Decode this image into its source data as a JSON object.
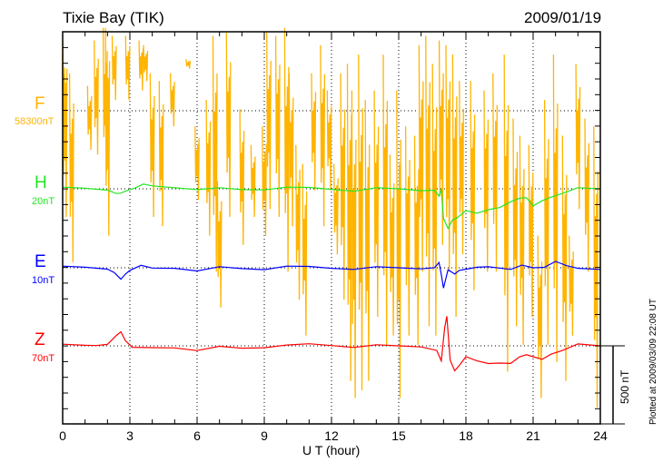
{
  "header": {
    "title": "Tixie Bay (TIK)",
    "date": "2009/01/19"
  },
  "footer": {
    "plotted": "Plotted at 2009/03/09 22:08 UT",
    "scale": "500 nT"
  },
  "chart_data": {
    "type": "line",
    "title": "Tixie Bay (TIK)",
    "xlabel": "U T (hour)",
    "xlim": [
      0,
      24
    ],
    "xticks": [
      "0",
      "3",
      "6",
      "9",
      "12",
      "15",
      "18",
      "21",
      "24"
    ],
    "scale_bar_nT": 500,
    "components": [
      {
        "name": "F",
        "baseline_label": "58300nT",
        "color": "#ffb400"
      },
      {
        "name": "H",
        "baseline_label": "20nT",
        "color": "#22e622"
      },
      {
        "name": "E",
        "baseline_label": "10nT",
        "color": "#0000ff"
      },
      {
        "name": "Z",
        "baseline_label": "70nT",
        "color": "#ff0000"
      }
    ],
    "H": [
      [
        0,
        0
      ],
      [
        1,
        0
      ],
      [
        2,
        -5
      ],
      [
        2.4,
        -20
      ],
      [
        2.6,
        -35
      ],
      [
        2.8,
        -15
      ],
      [
        3.2,
        10
      ],
      [
        3.6,
        20
      ],
      [
        4,
        15
      ],
      [
        5,
        10
      ],
      [
        6,
        5
      ],
      [
        7,
        0
      ],
      [
        8,
        -5
      ],
      [
        9,
        0
      ],
      [
        10,
        0
      ],
      [
        11,
        5
      ],
      [
        12,
        0
      ],
      [
        13,
        -5
      ],
      [
        14,
        0
      ],
      [
        15,
        0
      ],
      [
        16,
        -5
      ],
      [
        16.6,
        -20
      ],
      [
        16.8,
        -50
      ],
      [
        16.9,
        0
      ],
      [
        17.0,
        -180
      ],
      [
        17.2,
        -260
      ],
      [
        17.4,
        -200
      ],
      [
        17.6,
        -180
      ],
      [
        18,
        -150
      ],
      [
        18.5,
        -160
      ],
      [
        19,
        -130
      ],
      [
        19.5,
        -110
      ],
      [
        20,
        -90
      ],
      [
        20.4,
        -60
      ],
      [
        20.7,
        -50
      ],
      [
        21,
        -120
      ],
      [
        21.4,
        -80
      ],
      [
        21.8,
        -50
      ],
      [
        22.3,
        -20
      ],
      [
        23,
        0
      ],
      [
        24,
        0
      ]
    ],
    "E": [
      [
        0,
        0
      ],
      [
        1,
        0
      ],
      [
        2,
        -5
      ],
      [
        2.3,
        -20
      ],
      [
        2.6,
        -80
      ],
      [
        2.8,
        -40
      ],
      [
        3,
        -10
      ],
      [
        3.5,
        5
      ],
      [
        4,
        -5
      ],
      [
        5,
        0
      ],
      [
        6,
        -10
      ],
      [
        7,
        0
      ],
      [
        8,
        -5
      ],
      [
        9,
        -5
      ],
      [
        10,
        0
      ],
      [
        11,
        5
      ],
      [
        12,
        0
      ],
      [
        13,
        0
      ],
      [
        14,
        0
      ],
      [
        15,
        0
      ],
      [
        16,
        0
      ],
      [
        16.6,
        -10
      ],
      [
        16.8,
        30
      ],
      [
        16.9,
        -40
      ],
      [
        17.0,
        -120
      ],
      [
        17.2,
        -20
      ],
      [
        17.5,
        -40
      ],
      [
        17.7,
        -10
      ],
      [
        18,
        -20
      ],
      [
        18.5,
        0
      ],
      [
        19,
        10
      ],
      [
        20,
        0
      ],
      [
        20.5,
        10
      ],
      [
        21,
        0
      ],
      [
        21.5,
        10
      ],
      [
        22,
        30
      ],
      [
        22.5,
        10
      ],
      [
        23,
        0
      ],
      [
        24,
        0
      ]
    ],
    "Z": [
      [
        0,
        0
      ],
      [
        1,
        0
      ],
      [
        1.5,
        5
      ],
      [
        2,
        20
      ],
      [
        2.4,
        60
      ],
      [
        2.6,
        90
      ],
      [
        2.8,
        40
      ],
      [
        3.1,
        -20
      ],
      [
        4,
        -15
      ],
      [
        5,
        -10
      ],
      [
        6,
        -20
      ],
      [
        7,
        -10
      ],
      [
        8,
        -15
      ],
      [
        9,
        -5
      ],
      [
        10,
        -5
      ],
      [
        11,
        10
      ],
      [
        12,
        5
      ],
      [
        13,
        0
      ],
      [
        14,
        0
      ],
      [
        15,
        0
      ],
      [
        16,
        0
      ],
      [
        16.7,
        -40
      ],
      [
        16.9,
        -100
      ],
      [
        17.05,
        120
      ],
      [
        17.15,
        200
      ],
      [
        17.3,
        -100
      ],
      [
        17.5,
        -160
      ],
      [
        17.7,
        -120
      ],
      [
        18,
        -80
      ],
      [
        18.5,
        -100
      ],
      [
        19,
        -110
      ],
      [
        19.5,
        -100
      ],
      [
        20,
        -120
      ],
      [
        20.4,
        -70
      ],
      [
        20.7,
        -50
      ],
      [
        21,
        -80
      ],
      [
        21.4,
        -90
      ],
      [
        21.8,
        -50
      ],
      [
        22.3,
        -20
      ],
      [
        23,
        5
      ],
      [
        24,
        0
      ]
    ],
    "F_spikes": [
      [
        0.0,
        360,
        -160
      ],
      [
        0.1,
        450,
        -680
      ],
      [
        0.4,
        240,
        -970
      ],
      [
        1.2,
        160,
        -250
      ],
      [
        1.5,
        450,
        -280
      ],
      [
        1.9,
        530,
        -390
      ],
      [
        2.0,
        530,
        -800
      ],
      [
        2.3,
        480,
        70
      ],
      [
        2.9,
        480,
        70
      ],
      [
        3.5,
        450,
        130
      ],
      [
        3.7,
        420,
        190
      ],
      [
        4.0,
        240,
        -680
      ],
      [
        4.4,
        190,
        -740
      ],
      [
        4.9,
        240,
        -100
      ],
      [
        5.6,
        330,
        270
      ],
      [
        6.0,
        -100,
        -570
      ],
      [
        6.5,
        70,
        -800
      ],
      [
        6.8,
        480,
        -1030
      ],
      [
        7.0,
        -450,
        -1260
      ],
      [
        7.4,
        500,
        -680
      ],
      [
        8.0,
        10,
        -860
      ],
      [
        8.5,
        -220,
        -680
      ],
      [
        9.0,
        -100,
        -800
      ],
      [
        9.2,
        500,
        -630
      ],
      [
        9.6,
        480,
        -680
      ],
      [
        10.0,
        530,
        -1030
      ],
      [
        10.2,
        240,
        -740
      ],
      [
        10.5,
        -220,
        -1210
      ],
      [
        10.8,
        -340,
        -1440
      ],
      [
        11.2,
        240,
        -510
      ],
      [
        11.6,
        420,
        -740
      ],
      [
        11.9,
        130,
        -510
      ],
      [
        12.2,
        -340,
        -920
      ],
      [
        12.5,
        240,
        -1210
      ],
      [
        12.8,
        300,
        -1730
      ],
      [
        13.0,
        130,
        -1840
      ],
      [
        13.3,
        360,
        -1790
      ],
      [
        13.6,
        70,
        -1730
      ],
      [
        14.0,
        130,
        -1320
      ],
      [
        14.4,
        360,
        -1500
      ],
      [
        14.7,
        -280,
        -1440
      ],
      [
        15.0,
        130,
        -1840
      ],
      [
        15.4,
        -100,
        -1440
      ],
      [
        15.8,
        -160,
        -1500
      ],
      [
        16.0,
        420,
        -1030
      ],
      [
        16.3,
        480,
        -1380
      ],
      [
        16.6,
        300,
        -1440
      ],
      [
        16.9,
        450,
        -860
      ],
      [
        17.2,
        420,
        -1030
      ],
      [
        17.5,
        360,
        -1320
      ],
      [
        17.8,
        190,
        -920
      ],
      [
        18.3,
        190,
        -1150
      ],
      [
        18.9,
        130,
        -1030
      ],
      [
        19.3,
        240,
        -1030
      ],
      [
        19.8,
        360,
        -1670
      ],
      [
        20.2,
        -50,
        -1380
      ],
      [
        20.5,
        -160,
        -1500
      ],
      [
        20.9,
        -220,
        -1320
      ],
      [
        21.3,
        -800,
        -1840
      ],
      [
        21.6,
        70,
        -1500
      ],
      [
        22.0,
        360,
        -1610
      ],
      [
        22.4,
        -160,
        -1730
      ],
      [
        22.7,
        -800,
        -1440
      ],
      [
        23.0,
        300,
        -630
      ],
      [
        23.4,
        -50,
        -1030
      ],
      [
        23.8,
        -100,
        -1900
      ]
    ]
  }
}
